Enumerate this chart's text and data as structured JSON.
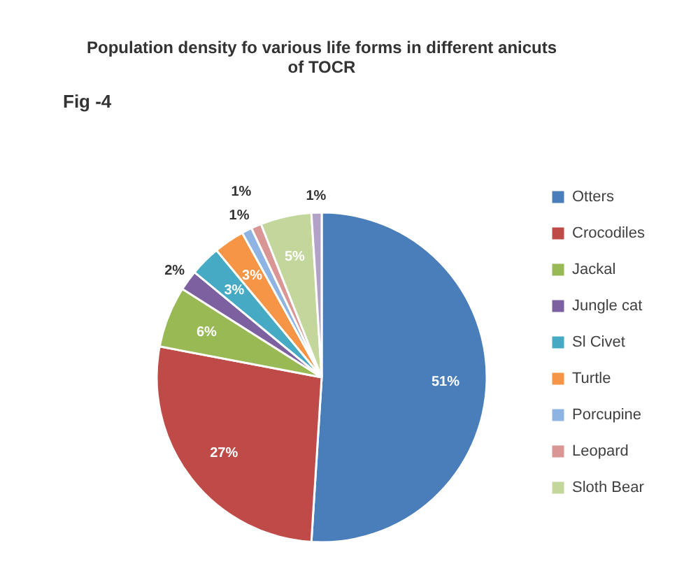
{
  "chart_data": {
    "type": "pie",
    "title": "Population density fo various life forms in different anicuts of TOCR",
    "annotations": [
      "Fig -4"
    ],
    "categories": [
      "Otters",
      "Crocodiles",
      "Jackal",
      "Jungle cat",
      "Sl Civet",
      "Turtle",
      "Porcupine",
      "Leopard",
      "Sloth Bear",
      null
    ],
    "values": [
      51,
      27,
      6,
      2,
      3,
      3,
      1,
      1,
      5,
      1
    ],
    "value_labels": [
      "51%",
      "27%",
      "6%",
      "2%",
      "3%",
      "3%",
      "1%",
      "1%",
      "5%",
      "1%"
    ],
    "colors": [
      "#4a7ebb",
      "#be4b48",
      "#98b954",
      "#7d60a0",
      "#46aac4",
      "#f69545",
      "#8eb4e3",
      "#d99694",
      "#c3d69b",
      "#b3a2c7"
    ],
    "legend": "right"
  }
}
